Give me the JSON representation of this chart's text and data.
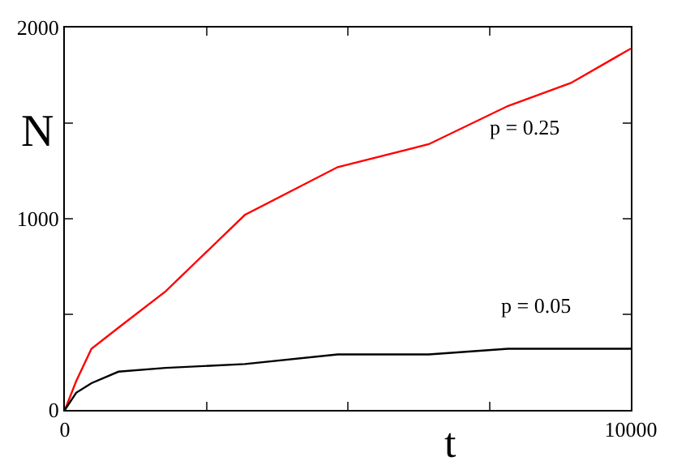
{
  "chart_data": {
    "type": "line",
    "xlabel": "t",
    "ylabel": "N",
    "x": [
      0,
      200,
      470,
      947,
      1780,
      3180,
      4820,
      6430,
      7830,
      8940,
      10000
    ],
    "series": [
      {
        "color": "#ff0000",
        "values": [
          0,
          150,
          320,
          430,
          620,
          1020,
          1270,
          1390,
          1590,
          1710,
          1890
        ]
      },
      {
        "color": "#000000",
        "values": [
          0,
          90,
          140,
          200,
          220,
          240,
          290,
          290,
          320,
          320,
          320
        ]
      }
    ],
    "xlim": [
      0,
      10000
    ],
    "ylim": [
      0,
      2000
    ],
    "xticks": [
      0,
      {
        "value": 2500,
        "label": null
      },
      {
        "value": 5000,
        "label": null
      },
      {
        "value": 7500,
        "label": null
      },
      10000
    ],
    "yticks": [
      0,
      {
        "value": 500,
        "label": null
      },
      1000,
      {
        "value": 1500,
        "label": null
      },
      2000
    ],
    "marker": "none",
    "line_style": "solid",
    "annotations": [
      "p = 0.25",
      "p = 0.05"
    ]
  }
}
